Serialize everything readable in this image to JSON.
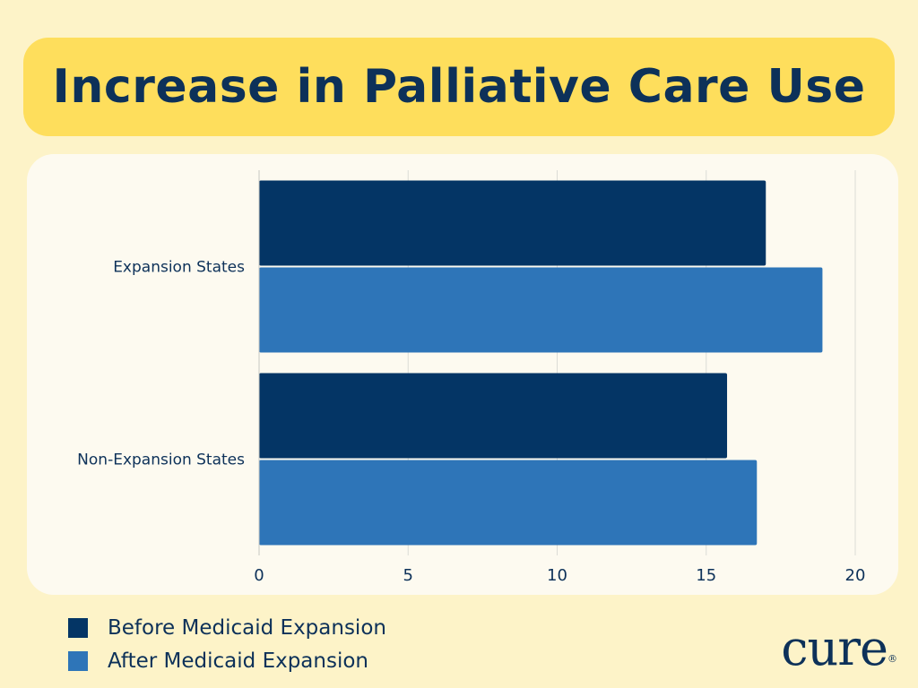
{
  "title": "Increase in Palliative Care Use",
  "chart_data": {
    "type": "bar",
    "orientation": "horizontal",
    "title": "Increase in Palliative Care Use",
    "categories": [
      "Expansion States",
      "Non-Expansion States"
    ],
    "series": [
      {
        "name": "Before Medicaid Expansion",
        "values": [
          17.0,
          15.7
        ],
        "color": "#043565"
      },
      {
        "name": "After Medicaid Expansion",
        "values": [
          18.9,
          16.7
        ],
        "color": "#2e75b8"
      }
    ],
    "xlim": [
      0,
      20
    ],
    "xticks": [
      0,
      5,
      10,
      15,
      20
    ],
    "xlabel": "",
    "ylabel": "",
    "grid": true,
    "legend_position": "bottom-left"
  },
  "logo": {
    "text": "cure",
    "mark": "®"
  },
  "colors": {
    "background": "#fdf3c8",
    "banner": "#fede5c",
    "text": "#0d3159"
  }
}
